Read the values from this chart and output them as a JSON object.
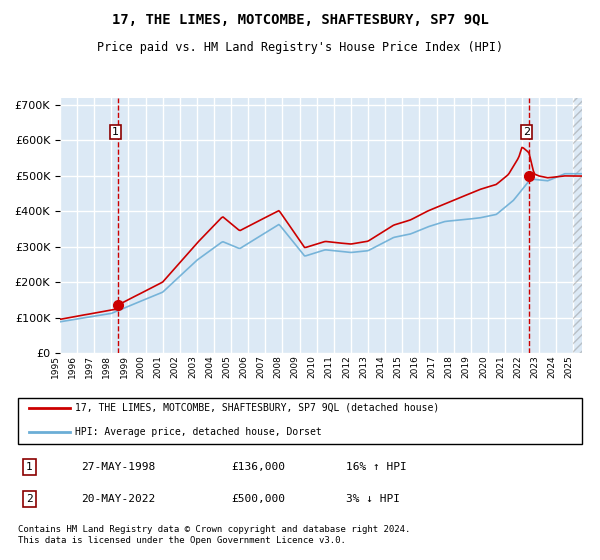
{
  "title": "17, THE LIMES, MOTCOMBE, SHAFTESBURY, SP7 9QL",
  "subtitle": "Price paid vs. HM Land Registry's House Price Index (HPI)",
  "legend_line1": "17, THE LIMES, MOTCOMBE, SHAFTESBURY, SP7 9QL (detached house)",
  "legend_line2": "HPI: Average price, detached house, Dorset",
  "sale1_date": "27-MAY-1998",
  "sale1_price": 136000,
  "sale1_hpi": "16% ↑ HPI",
  "sale2_date": "20-MAY-2022",
  "sale2_price": 500000,
  "sale2_hpi": "3% ↓ HPI",
  "footnote": "Contains HM Land Registry data © Crown copyright and database right 2024.\nThis data is licensed under the Open Government Licence v3.0.",
  "hpi_color": "#6baed6",
  "price_color": "#cc0000",
  "bg_color": "#dce9f5",
  "plot_bg": "#dce9f5",
  "grid_color": "#ffffff",
  "dashed_line_color": "#cc0000",
  "ylim": [
    0,
    720000
  ],
  "yticks": [
    0,
    100000,
    200000,
    300000,
    400000,
    500000,
    600000,
    700000
  ],
  "xlim_start": 1995.0,
  "xlim_end": 2025.5,
  "sale1_x": 1998.4,
  "sale2_x": 2022.4
}
